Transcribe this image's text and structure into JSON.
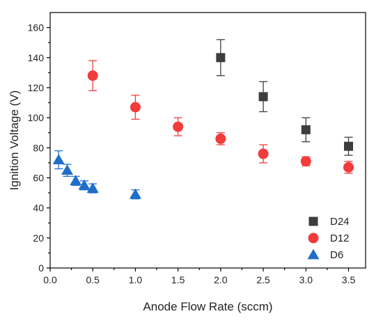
{
  "chart_data": {
    "type": "scatter",
    "xlabel": "Anode Flow Rate (sccm)",
    "ylabel": "Ignition Voltage (V)",
    "xlim": [
      0,
      3.7
    ],
    "ylim": [
      0,
      170
    ],
    "xticks": [
      "0.0",
      "0.5",
      "1.0",
      "1.5",
      "2.0",
      "2.5",
      "3.0",
      "3.5"
    ],
    "yticks": [
      "0",
      "20",
      "40",
      "60",
      "80",
      "100",
      "120",
      "140",
      "160"
    ],
    "grid": false,
    "legend_position": "bottom-right",
    "series": [
      {
        "name": "D24",
        "marker": "square",
        "color": "#3d3d3d",
        "points": [
          {
            "x": 2.0,
            "y": 140,
            "err": 12
          },
          {
            "x": 2.5,
            "y": 114,
            "err": 10
          },
          {
            "x": 3.0,
            "y": 92,
            "err": 8
          },
          {
            "x": 3.5,
            "y": 81,
            "err": 6
          }
        ]
      },
      {
        "name": "D12",
        "marker": "circle",
        "color": "#f23b3b",
        "points": [
          {
            "x": 0.5,
            "y": 128,
            "err": 10
          },
          {
            "x": 1.0,
            "y": 107,
            "err": 8
          },
          {
            "x": 1.5,
            "y": 94,
            "err": 6
          },
          {
            "x": 2.0,
            "y": 86,
            "err": 4
          },
          {
            "x": 2.5,
            "y": 76,
            "err": 6
          },
          {
            "x": 3.0,
            "y": 71,
            "err": 3
          },
          {
            "x": 3.5,
            "y": 67,
            "err": 4
          }
        ]
      },
      {
        "name": "D6",
        "marker": "triangle",
        "color": "#1f6fc9",
        "points": [
          {
            "x": 0.1,
            "y": 72,
            "err": 6
          },
          {
            "x": 0.2,
            "y": 65,
            "err": 4
          },
          {
            "x": 0.3,
            "y": 58,
            "err": 3
          },
          {
            "x": 0.4,
            "y": 55,
            "err": 3
          },
          {
            "x": 0.5,
            "y": 53,
            "err": 3
          },
          {
            "x": 1.0,
            "y": 49,
            "err": 3
          }
        ]
      }
    ]
  }
}
